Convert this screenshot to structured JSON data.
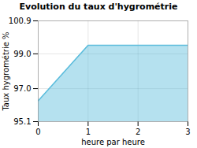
{
  "chart_data": {
    "type": "area",
    "title": "Evolution du taux d'hygrométrie",
    "xlabel": "heure par heure",
    "ylabel": "Taux hygrométrie %",
    "x": [
      0,
      1,
      2,
      3
    ],
    "values": [
      96.3,
      99.5,
      99.5,
      99.5
    ],
    "color": "#5bbcdc",
    "xlim": [
      0,
      3
    ],
    "ylim": [
      95.1,
      100.9
    ],
    "xticks": [
      0,
      1,
      2,
      3
    ],
    "yticks": [
      95.1,
      {
        "value": 97.0,
        "label": "97.0"
      },
      {
        "value": 99.0,
        "label": "99.0"
      },
      100.9
    ],
    "grid": true
  }
}
